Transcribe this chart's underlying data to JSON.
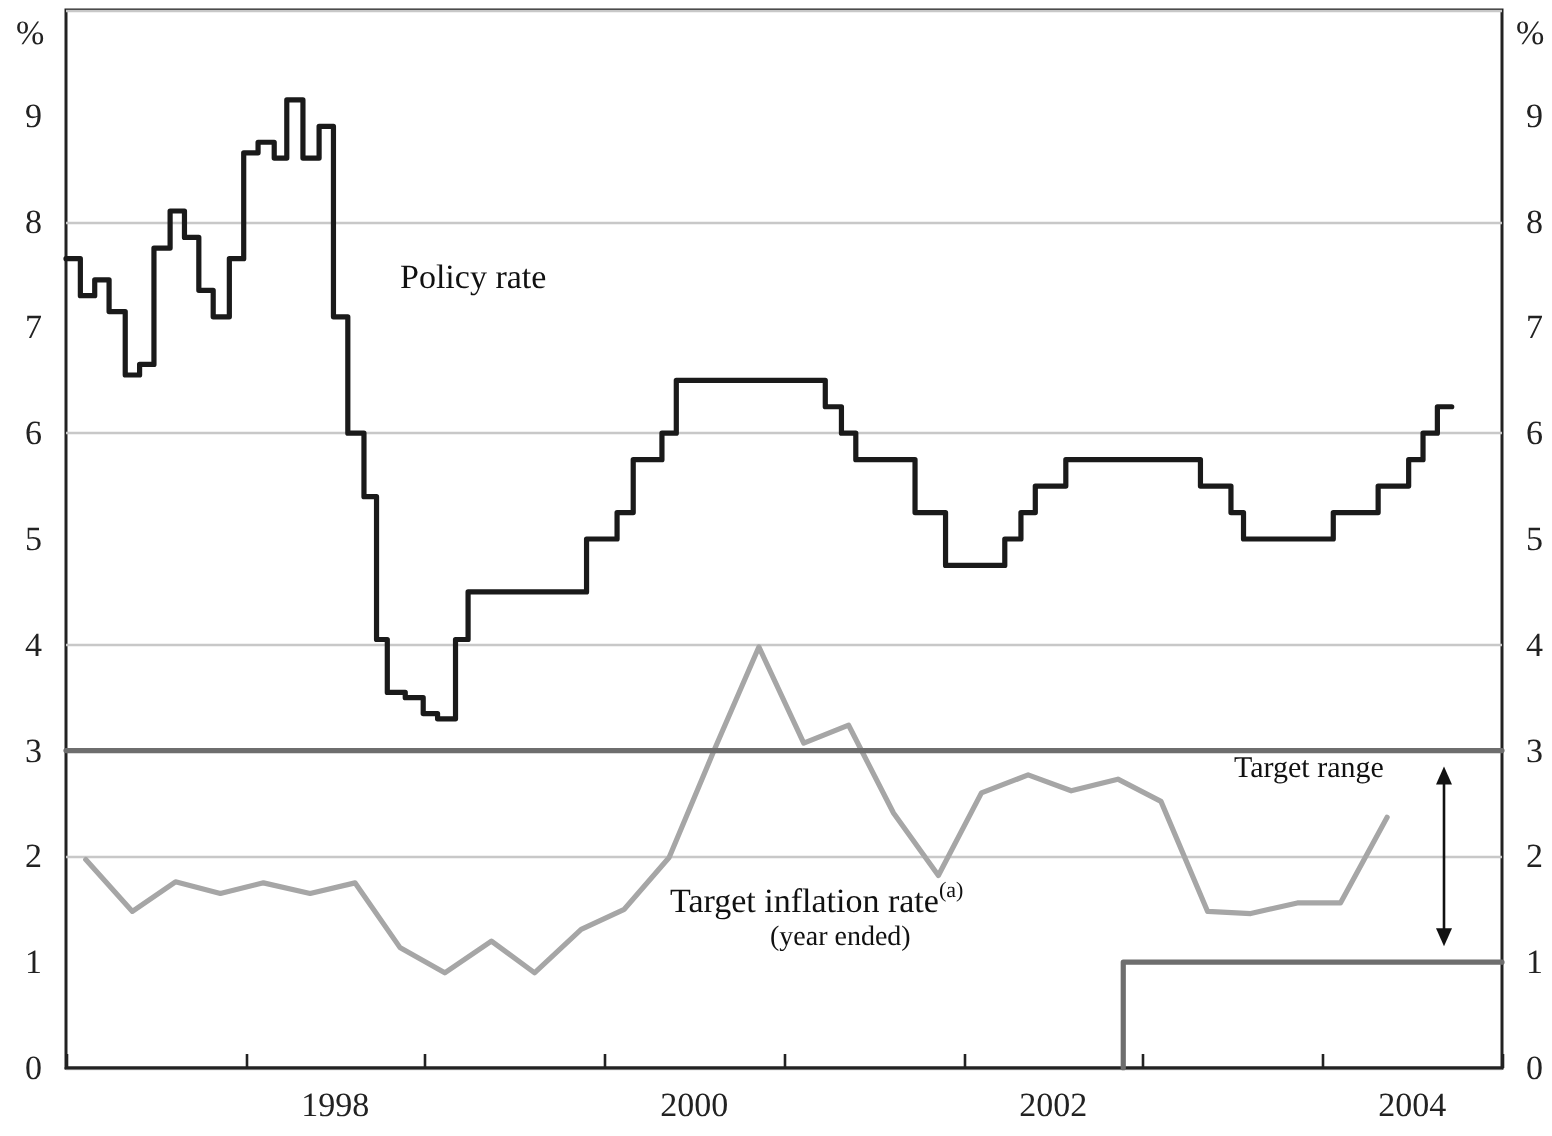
{
  "chart_data": {
    "type": "line",
    "ylabel": "%",
    "y2label": "%",
    "xlim": [
      1997,
      2005
    ],
    "xticks": [
      {
        "value": 1997,
        "label": null
      },
      {
        "value": 1998,
        "label": null
      },
      {
        "value": 1998.5,
        "label": "1998"
      },
      {
        "value": 1999,
        "label": null
      },
      {
        "value": 2000,
        "label": null
      },
      {
        "value": 2000.5,
        "label": "2000"
      },
      {
        "value": 2001,
        "label": null
      },
      {
        "value": 2002,
        "label": null
      },
      {
        "value": 2002.5,
        "label": "2002"
      },
      {
        "value": 2003,
        "label": null
      },
      {
        "value": 2004,
        "label": null
      },
      {
        "value": 2004.5,
        "label": "2004"
      },
      {
        "value": 2005,
        "label": null
      }
    ],
    "ylim": [
      0,
      10
    ],
    "yticks": [
      0,
      1,
      2,
      3,
      4,
      5,
      6,
      7,
      8,
      9
    ],
    "y2lim": [
      0,
      10
    ],
    "y2ticks": [
      0,
      1,
      2,
      3,
      4,
      5,
      6,
      7,
      8,
      9
    ],
    "grid": "y",
    "marker": "none",
    "series": [
      {
        "name": "Policy rate",
        "type": "step",
        "color": "#1a1a1a",
        "x": [
          1997.0,
          1997.08,
          1997.16,
          1997.24,
          1997.33,
          1997.41,
          1997.49,
          1997.58,
          1997.66,
          1997.74,
          1997.82,
          1997.91,
          1997.99,
          1998.07,
          1998.16,
          1998.23,
          1998.32,
          1998.41,
          1998.49,
          1998.57,
          1998.66,
          1998.73,
          1998.79,
          1998.89,
          1998.99,
          1999.07,
          1999.17,
          1999.24,
          1999.9,
          2000.07,
          2000.16,
          2000.32,
          2000.4,
          2001.23,
          2001.32,
          2001.4,
          2001.73,
          2001.9,
          2002.23,
          2002.32,
          2002.4,
          2002.57,
          2003.32,
          2003.49,
          2003.56,
          2004.06,
          2004.31,
          2004.48,
          2004.56,
          2004.64,
          2004.72
        ],
        "values": [
          7.65,
          7.3,
          7.45,
          7.15,
          6.55,
          6.65,
          7.75,
          8.1,
          7.85,
          7.35,
          7.1,
          7.65,
          8.65,
          8.75,
          8.6,
          9.15,
          8.6,
          8.9,
          7.1,
          6.0,
          5.4,
          4.05,
          3.55,
          3.5,
          3.35,
          3.3,
          4.05,
          4.5,
          5.0,
          5.25,
          5.75,
          6.0,
          6.5,
          6.25,
          6.0,
          5.75,
          5.25,
          4.75,
          5.0,
          5.25,
          5.5,
          5.75,
          5.5,
          5.25,
          5.0,
          5.25,
          5.5,
          5.75,
          6.0,
          6.25,
          6.25
        ]
      },
      {
        "name": "Target inflation rate$^{(a)}$",
        "type": "line",
        "color": "#a6a6a6",
        "x": [
          1997.11,
          1997.37,
          1997.61,
          1997.86,
          1998.1,
          1998.36,
          1998.61,
          1998.86,
          1999.11,
          1999.37,
          1999.61,
          1999.87,
          2000.11,
          2000.36,
          2000.61,
          2000.86,
          2001.11,
          2001.36,
          2001.61,
          2001.86,
          2002.1,
          2002.36,
          2002.6,
          2002.86,
          2003.1,
          2003.36,
          2003.6,
          2003.86,
          2004.1,
          2004.36
        ],
        "values": [
          1.97,
          1.48,
          1.76,
          1.65,
          1.75,
          1.65,
          1.75,
          1.14,
          0.9,
          1.2,
          0.9,
          1.31,
          1.5,
          1.99,
          3.0,
          3.98,
          3.07,
          3.24,
          2.41,
          1.82,
          2.6,
          2.77,
          2.62,
          2.73,
          2.52,
          1.48,
          1.46,
          1.56,
          1.56,
          2.37
        ]
      },
      {
        "type": "step",
        "color": "#6e6e6e",
        "x": [
          2002.89,
          2002.89,
          2005
        ],
        "values": [
          0,
          1,
          1
        ]
      },
      {
        "type": "line",
        "color": "#6e6e6e",
        "x": [
          1997,
          2005
        ],
        "values": [
          3,
          3
        ]
      }
    ],
    "annotations": [
      "(year ended)",
      "Target range"
    ]
  }
}
